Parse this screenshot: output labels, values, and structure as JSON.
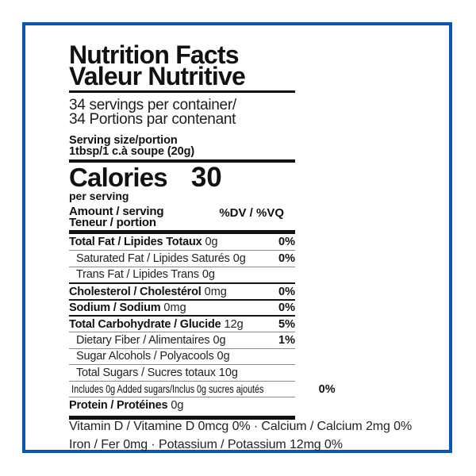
{
  "colors": {
    "frame_blue": "#0b56b4",
    "text": "#111111",
    "hairline_gray": "#8a8a8a"
  },
  "label": {
    "title": {
      "en": "Nutrition Facts",
      "fr": "Valeur Nutritive"
    },
    "servings": {
      "en": "34 servings per container/",
      "fr": "34 Portions par contenant"
    },
    "serving_size": {
      "label": "Serving size/portion",
      "value": "1tbsp/1 c.à soupe (20g)"
    },
    "calories": {
      "label": "Calories",
      "value": "30",
      "note": "per serving"
    },
    "column_header": {
      "amount_en": "Amount / serving",
      "amount_fr": "Teneur / portion",
      "dv": "%DV / %VQ"
    },
    "rows": [
      {
        "name": "Total Fat / Lipides Totaux",
        "amount": "0g",
        "dv": "0%"
      },
      {
        "name": "Saturated Fat / Lipides Saturés",
        "amount": "0g",
        "dv": "0%"
      },
      {
        "name": "Trans Fat / Lipides Trans",
        "amount": "0g"
      },
      {
        "name": "Cholesterol / Cholestérol",
        "amount": "0mg",
        "dv": "0%"
      },
      {
        "name": "Sodium / Sodium",
        "amount": "0mg",
        "dv": "0%"
      },
      {
        "name": "Total Carbohydrate / Glucide",
        "amount": "12g",
        "dv": "5%"
      },
      {
        "name": "Dietary Fiber / Alimentaires",
        "amount": "0g",
        "dv": "1%"
      },
      {
        "name": "Sugar Alcohols / Polyacools",
        "amount": "0g"
      },
      {
        "name": "Total Sugars / Sucres totaux",
        "amount": "10g"
      },
      {
        "name": "Includes 0g Added sugars/Inclus 0g sucres ajoutés",
        "amount": "",
        "dv": "0%"
      },
      {
        "name": "Protein / Protéines",
        "amount": "0g"
      }
    ],
    "footer": {
      "line1": "Vitamin D / Vitamine D 0mcg 0% · Calcium / Calcium 2mg 0%",
      "line2": "Iron / Fer 0mg · Potassium / Potassium 12mg 0%"
    }
  }
}
